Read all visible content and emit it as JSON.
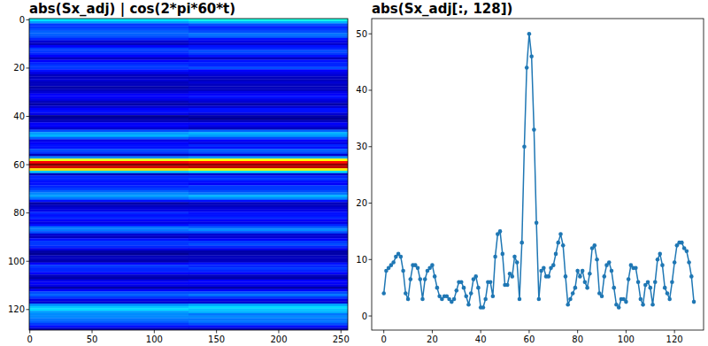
{
  "chart_data": [
    {
      "type": "heatmap",
      "title": "abs(Sx_adj) | cos(2*pi*60*t)",
      "xlim": [
        -0.5,
        255.5
      ],
      "ylim": [
        128.5,
        -0.5
      ],
      "xticks": [
        0,
        50,
        100,
        150,
        200,
        250
      ],
      "yticks": [
        0,
        20,
        40,
        60,
        80,
        100,
        120
      ],
      "color_range": [
        0,
        50
      ],
      "cells": [
        [
          18,
          20
        ],
        [
          14,
          15
        ],
        [
          9,
          10
        ],
        [
          9,
          8
        ],
        [
          10,
          9
        ],
        [
          11,
          10
        ],
        [
          11,
          12
        ],
        [
          10,
          11
        ],
        [
          8,
          7
        ],
        [
          4,
          5
        ],
        [
          3,
          4
        ],
        [
          6,
          7
        ],
        [
          9,
          8
        ],
        [
          9,
          10
        ],
        [
          8,
          9
        ],
        [
          6,
          7
        ],
        [
          3,
          3
        ],
        [
          6,
          7
        ],
        [
          8,
          8
        ],
        [
          9,
          8
        ],
        [
          9,
          10
        ],
        [
          7,
          6
        ],
        [
          5,
          5
        ],
        [
          3,
          4
        ],
        [
          3,
          3
        ],
        [
          4,
          3
        ],
        [
          3,
          4
        ],
        [
          3,
          3
        ],
        [
          2,
          3
        ],
        [
          3,
          3
        ],
        [
          4,
          5
        ],
        [
          6,
          6
        ],
        [
          6,
          7
        ],
        [
          5,
          5
        ],
        [
          3,
          4
        ],
        [
          2,
          2
        ],
        [
          4,
          4
        ],
        [
          6,
          7
        ],
        [
          7,
          7
        ],
        [
          5,
          4
        ],
        [
          1,
          2
        ],
        [
          2,
          1
        ],
        [
          3,
          3
        ],
        [
          6,
          6
        ],
        [
          6,
          5
        ],
        [
          4,
          3
        ],
        [
          10,
          11
        ],
        [
          14,
          15
        ],
        [
          15,
          14
        ],
        [
          11,
          10
        ],
        [
          5,
          6
        ],
        [
          6,
          5
        ],
        [
          7,
          8
        ],
        [
          7,
          7
        ],
        [
          10,
          11
        ],
        [
          9,
          10
        ],
        [
          3,
          4
        ],
        [
          13,
          14
        ],
        [
          30,
          31
        ],
        [
          44,
          43
        ],
        [
          50,
          49
        ],
        [
          46,
          47
        ],
        [
          33,
          32
        ],
        [
          16,
          17
        ],
        [
          3,
          4
        ],
        [
          8,
          8
        ],
        [
          8,
          9
        ],
        [
          7,
          7
        ],
        [
          7,
          6
        ],
        [
          8,
          9
        ],
        [
          9,
          9
        ],
        [
          11,
          10
        ],
        [
          13,
          12
        ],
        [
          14,
          15
        ],
        [
          12,
          13
        ],
        [
          7,
          7
        ],
        [
          2,
          3
        ],
        [
          3,
          3
        ],
        [
          4,
          4
        ],
        [
          5,
          5
        ],
        [
          8,
          7
        ],
        [
          7,
          7
        ],
        [
          8,
          8
        ],
        [
          6,
          6
        ],
        [
          5,
          5
        ],
        [
          7,
          8
        ],
        [
          12,
          11
        ],
        [
          12,
          13
        ],
        [
          10,
          10
        ],
        [
          4,
          4
        ],
        [
          3,
          4
        ],
        [
          7,
          6
        ],
        [
          9,
          9
        ],
        [
          9,
          10
        ],
        [
          8,
          8
        ],
        [
          5,
          5
        ],
        [
          2,
          2
        ],
        [
          1,
          2
        ],
        [
          3,
          3
        ],
        [
          3,
          3
        ],
        [
          2,
          3
        ],
        [
          6,
          7
        ],
        [
          9,
          8
        ],
        [
          8,
          9
        ],
        [
          8,
          8
        ],
        [
          6,
          6
        ],
        [
          3,
          3
        ],
        [
          2,
          2
        ],
        [
          5,
          6
        ],
        [
          6,
          6
        ],
        [
          5,
          5
        ],
        [
          2,
          2
        ],
        [
          6,
          6
        ],
        [
          10,
          10
        ],
        [
          11,
          12
        ],
        [
          9,
          9
        ],
        [
          5,
          5
        ],
        [
          4,
          4
        ],
        [
          13,
          14
        ],
        [
          16,
          17
        ],
        [
          17,
          16
        ],
        [
          14,
          15
        ],
        [
          13,
          12
        ],
        [
          13,
          13
        ],
        [
          12,
          12
        ],
        [
          11,
          12
        ],
        [
          9,
          10
        ],
        [
          7,
          7
        ],
        [
          3,
          3
        ]
      ]
    },
    {
      "type": "line",
      "title": "abs(Sx_adj[:, 128])",
      "color": "#1f77b4",
      "marker": "o",
      "xlim": [
        -5,
        132
      ],
      "ylim": [
        -2.5,
        52.7
      ],
      "xticks": [
        0,
        20,
        40,
        60,
        80,
        100,
        120
      ],
      "yticks": [
        0,
        10,
        20,
        30,
        40,
        50
      ],
      "x": [
        0,
        1,
        2,
        3,
        4,
        5,
        6,
        7,
        8,
        9,
        10,
        11,
        12,
        13,
        14,
        15,
        16,
        17,
        18,
        19,
        20,
        21,
        22,
        23,
        24,
        25,
        26,
        27,
        28,
        29,
        30,
        31,
        32,
        33,
        34,
        35,
        36,
        37,
        38,
        39,
        40,
        41,
        42,
        43,
        44,
        45,
        46,
        47,
        48,
        49,
        50,
        51,
        52,
        53,
        54,
        55,
        56,
        57,
        58,
        59,
        60,
        61,
        62,
        63,
        64,
        65,
        66,
        67,
        68,
        69,
        70,
        71,
        72,
        73,
        74,
        75,
        76,
        77,
        78,
        79,
        80,
        81,
        82,
        83,
        84,
        85,
        86,
        87,
        88,
        89,
        90,
        91,
        92,
        93,
        94,
        95,
        96,
        97,
        98,
        99,
        100,
        101,
        102,
        103,
        104,
        105,
        106,
        107,
        108,
        109,
        110,
        111,
        112,
        113,
        114,
        115,
        116,
        117,
        118,
        119,
        120,
        121,
        122,
        123,
        124,
        125,
        126,
        127,
        128
      ],
      "values": [
        4,
        8,
        8.5,
        9,
        9.5,
        10.5,
        11,
        10.5,
        8,
        4,
        3,
        6.5,
        9,
        9,
        8.5,
        6.5,
        3,
        6.5,
        8,
        8.5,
        9,
        7,
        5,
        3.5,
        3,
        3.5,
        3.5,
        3,
        2.5,
        3,
        4.5,
        6,
        6,
        5,
        3.5,
        2,
        4,
        6.5,
        7,
        5,
        1.5,
        1.5,
        3,
        6,
        6,
        3.5,
        10.5,
        14.5,
        15,
        11,
        5.5,
        5.5,
        7.5,
        7,
        10.5,
        9.5,
        3,
        13,
        30,
        44,
        50,
        46,
        33,
        16.5,
        3,
        8,
        8.5,
        7,
        7,
        8.5,
        9,
        11,
        13,
        14.5,
        12.5,
        7,
        2,
        3,
        4,
        5,
        8,
        7,
        8,
        6,
        5,
        7.5,
        12,
        12.5,
        10,
        4,
        3.5,
        7,
        9,
        9.5,
        8,
        5,
        2,
        1.5,
        3,
        3,
        2.5,
        6.5,
        9,
        8.5,
        8.5,
        6,
        3,
        2,
        5.5,
        6,
        5,
        2,
        6,
        10,
        11,
        9,
        5,
        4,
        3,
        6,
        9.5,
        12.5,
        13,
        13,
        12,
        11.5,
        9.5,
        7,
        2.5
      ]
    }
  ]
}
